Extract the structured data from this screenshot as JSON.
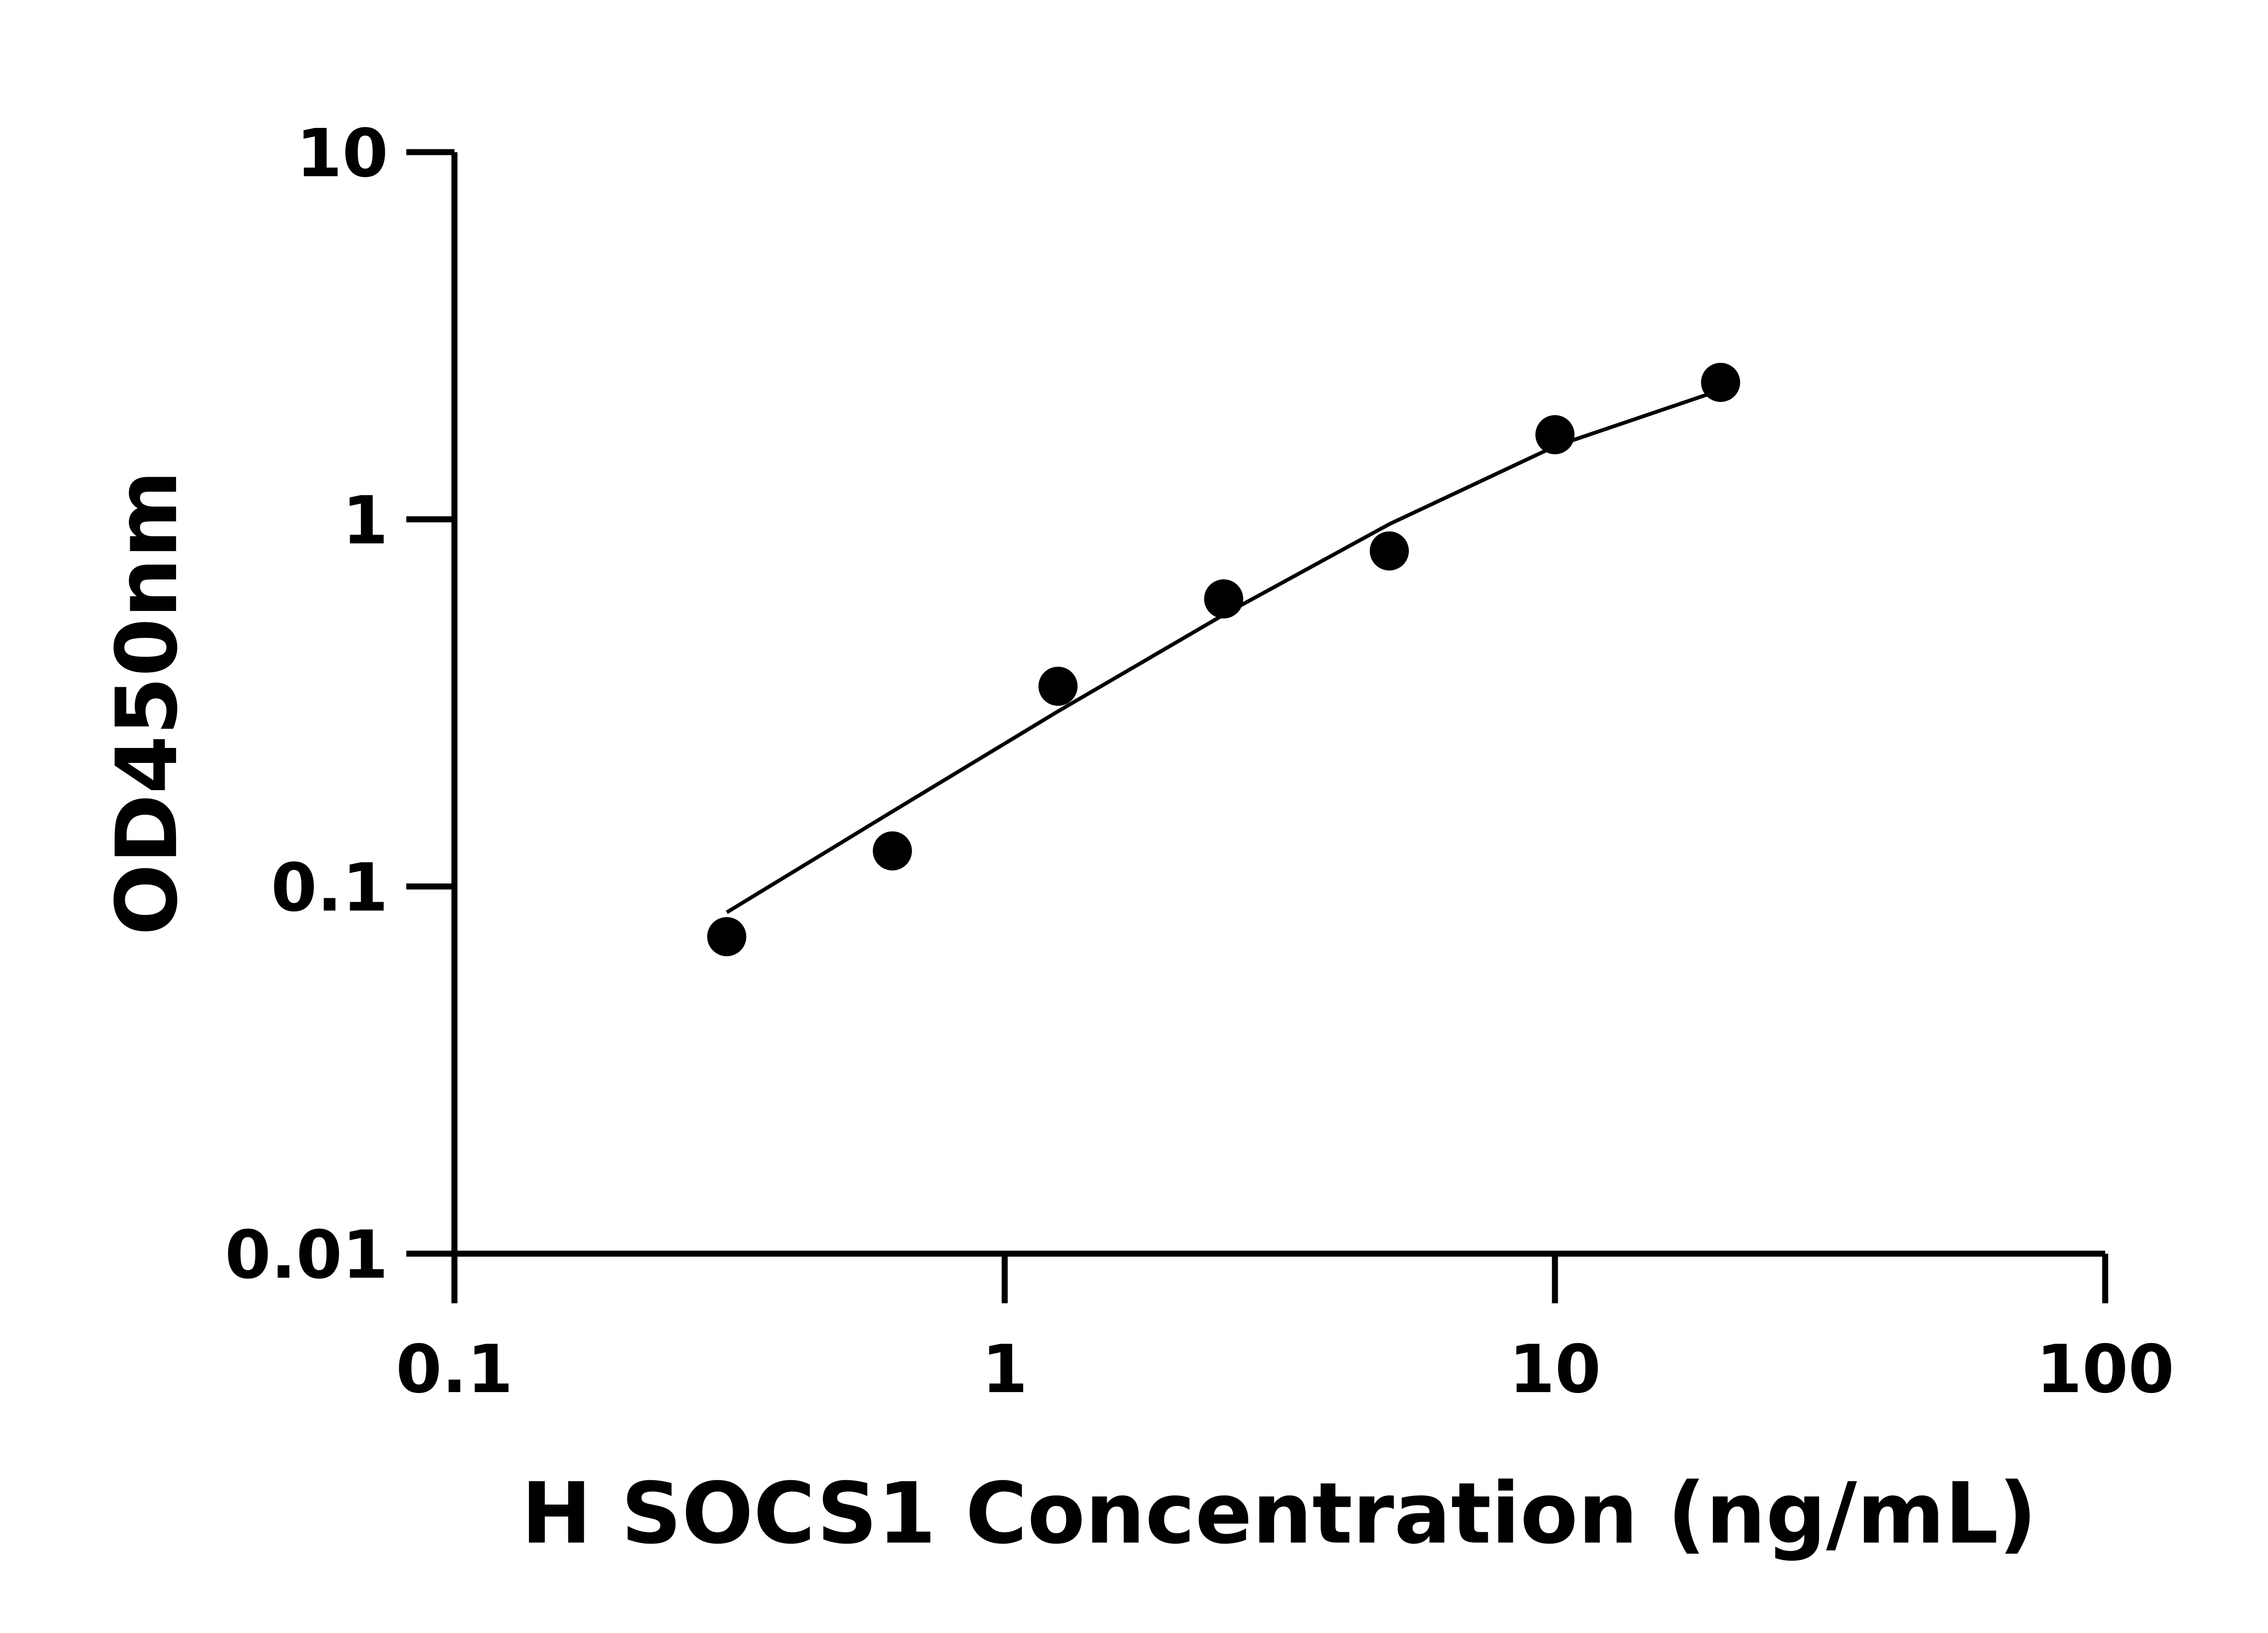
{
  "chart_data": {
    "type": "scatter",
    "title": "",
    "xlabel": "H SOCS1 Concentration (ng/mL)",
    "ylabel": "OD450nm",
    "x_scale": "log",
    "y_scale": "log",
    "xlim": [
      0.1,
      100
    ],
    "ylim": [
      0.01,
      10
    ],
    "x_ticks": [
      "0.1",
      "1",
      "10",
      "100"
    ],
    "y_ticks": [
      "0.01",
      "0.1",
      "1",
      "10"
    ],
    "grid": false,
    "legend": "none",
    "colors": {
      "points": "#000000",
      "curve": "#000000"
    },
    "series": [
      {
        "x": [
          0.3125,
          0.625,
          1.25,
          2.5,
          5,
          10,
          20
        ],
        "y": [
          0.073,
          0.125,
          0.351,
          0.607,
          0.82,
          1.7,
          2.36
        ]
      }
    ],
    "fit_curve": {
      "x": [
        0.3125,
        0.625,
        1.25,
        2.5,
        5,
        10,
        20
      ],
      "y": [
        0.085,
        0.16,
        0.3,
        0.55,
        0.97,
        1.58,
        2.25
      ]
    }
  }
}
